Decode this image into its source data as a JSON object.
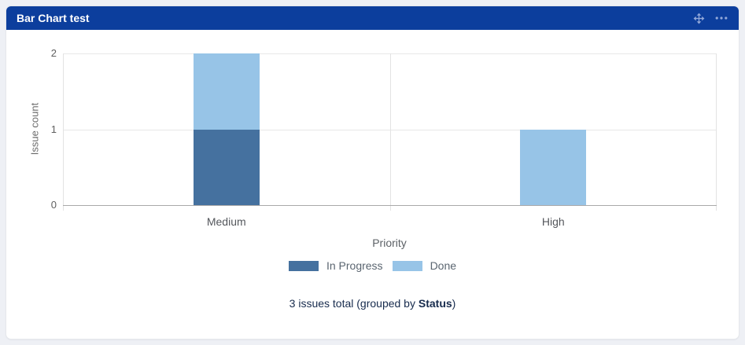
{
  "header": {
    "title": "Bar Chart test",
    "icons": [
      "drag-handle-icon",
      "more-options-icon"
    ]
  },
  "colors": {
    "page_bg": "#eef0f5",
    "header_bg": "#0c3e9d",
    "header_icon": "#93a9d9",
    "in_progress": "#45719f",
    "done": "#97c4e7",
    "footer_text": "#172b4d"
  },
  "chart_data": {
    "type": "bar",
    "stacked": true,
    "categories": [
      "Medium",
      "High"
    ],
    "series": [
      {
        "name": "In Progress",
        "values": [
          1,
          0
        ],
        "color": "#45719f"
      },
      {
        "name": "Done",
        "values": [
          1,
          1
        ],
        "color": "#97c4e7"
      }
    ],
    "title": "Bar Chart test",
    "xlabel": "Priority",
    "ylabel": "Issue count",
    "ylim": [
      0,
      2
    ],
    "y_ticks": [
      2,
      1,
      0
    ],
    "grid": true,
    "legend_position": "bottom"
  },
  "footer": {
    "prefix": "3 issues total (grouped by ",
    "group_label": "Status",
    "suffix": ")"
  }
}
